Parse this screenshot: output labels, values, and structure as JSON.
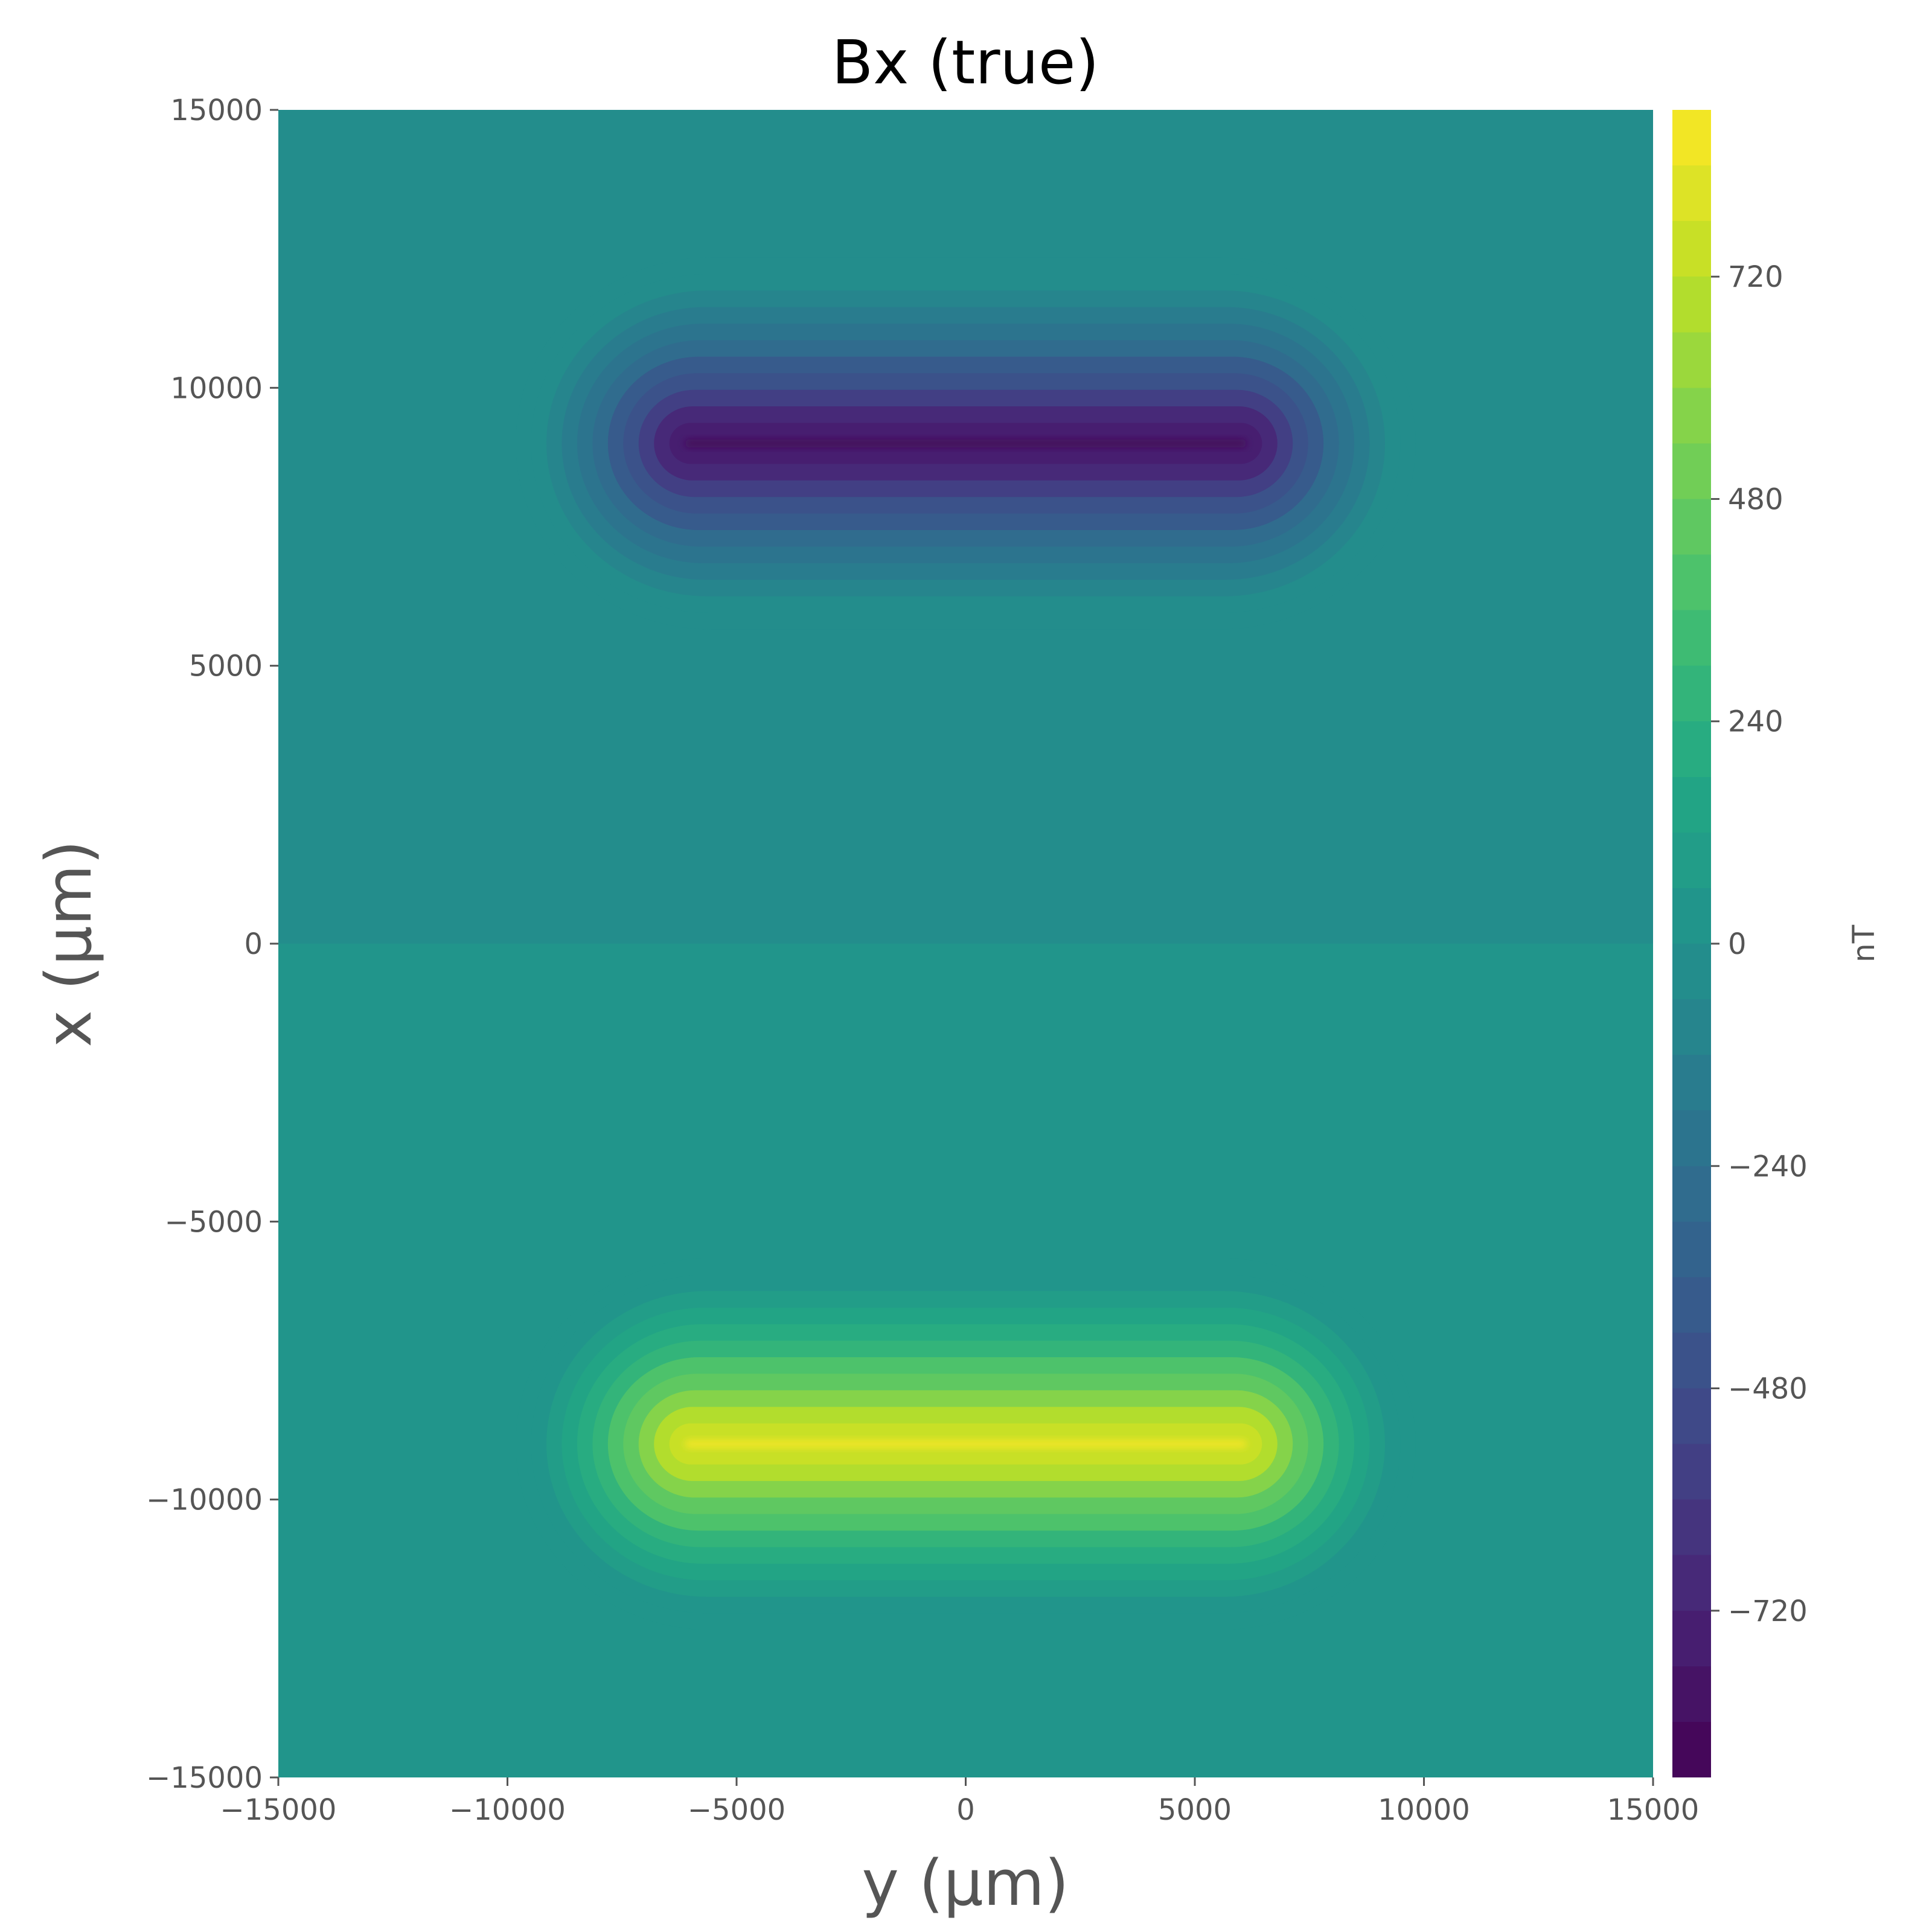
{
  "chart_data": {
    "type": "heatmap",
    "title": "Bx (true)",
    "xlabel": "y (μm)",
    "ylabel": "x (μm)",
    "xlim": [
      -15000,
      15000
    ],
    "ylim": [
      -15000,
      15000
    ],
    "xticks": [
      "−15000",
      "−10000",
      "−5000",
      "0",
      "5000",
      "10000",
      "15000"
    ],
    "yticks": [
      "−15000",
      "−10000",
      "−5000",
      "0",
      "5000",
      "10000",
      "15000"
    ],
    "xtick_values": [
      -15000,
      -10000,
      -5000,
      0,
      5000,
      10000,
      15000
    ],
    "ytick_values": [
      -15000,
      -10000,
      -5000,
      0,
      5000,
      10000,
      15000
    ],
    "colorbar": {
      "label": "nT",
      "colormap": "viridis",
      "range": [
        -900,
        900
      ],
      "levels": 30,
      "ticks": [
        "−720",
        "−480",
        "−240",
        "0",
        "240",
        "480",
        "720"
      ],
      "tick_values": [
        -720,
        -480,
        -240,
        0,
        240,
        480,
        720
      ]
    },
    "features": [
      {
        "center_y": 0,
        "center_x": 9000,
        "half_length_y": 6000,
        "peak_value": -900,
        "background": -40
      },
      {
        "center_y": 0,
        "center_x": -9000,
        "half_length_y": 6000,
        "peak_value": 900,
        "background": 40
      }
    ],
    "grid": false
  }
}
